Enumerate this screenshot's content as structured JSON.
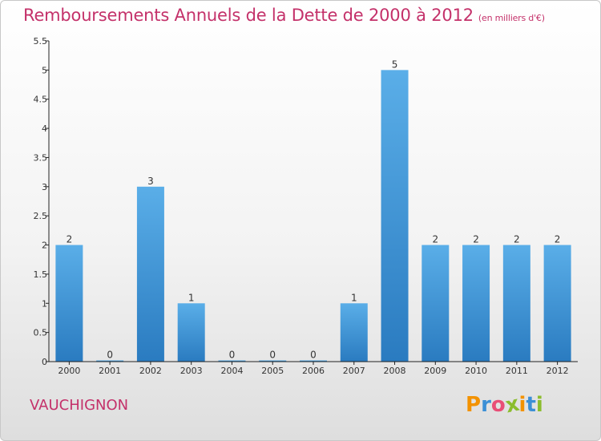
{
  "header": {
    "title": "Remboursements Annuels de la Dette de 2000 à 2012",
    "unit": "(en milliers d'€)"
  },
  "commune": "VAUCHIGNON",
  "logo": {
    "text": "Proxiti",
    "letters": [
      {
        "ch": "P",
        "color": "#f39200"
      },
      {
        "ch": "r",
        "color": "#3b8fd6"
      },
      {
        "ch": "o",
        "color": "#e94e77"
      },
      {
        "ch": "x",
        "color": "#8bbd2d"
      },
      {
        "ch": "i",
        "color": "#f39200"
      },
      {
        "ch": "t",
        "color": "#3b8fd6"
      },
      {
        "ch": "i",
        "color": "#8bbd2d"
      }
    ]
  },
  "chart_data": {
    "type": "bar",
    "categories": [
      "2000",
      "2001",
      "2002",
      "2003",
      "2004",
      "2005",
      "2006",
      "2007",
      "2008",
      "2009",
      "2010",
      "2011",
      "2012"
    ],
    "values": [
      2,
      0,
      3,
      1,
      0,
      0,
      0,
      1,
      5,
      2,
      2,
      2,
      2
    ],
    "data_labels": [
      "2",
      "0",
      "3",
      "1",
      "0",
      "0",
      "0",
      "1",
      "5",
      "2",
      "2",
      "2",
      "2"
    ],
    "ylim": [
      0,
      5.5
    ],
    "yticks": [
      0,
      0.5,
      1,
      1.5,
      2,
      2.5,
      3,
      3.5,
      4,
      4.5,
      5,
      5.5
    ],
    "ytick_labels": [
      "0",
      "0.5",
      "1",
      "1.5",
      "2",
      "2.5",
      "3",
      "3.5",
      "4",
      "4.5",
      "5",
      "5.5"
    ],
    "grid": false,
    "colors": {
      "bar_top": "#5aaee8",
      "bar_bottom": "#2a7bc0",
      "axis": "#222222",
      "text": "#333333"
    }
  }
}
